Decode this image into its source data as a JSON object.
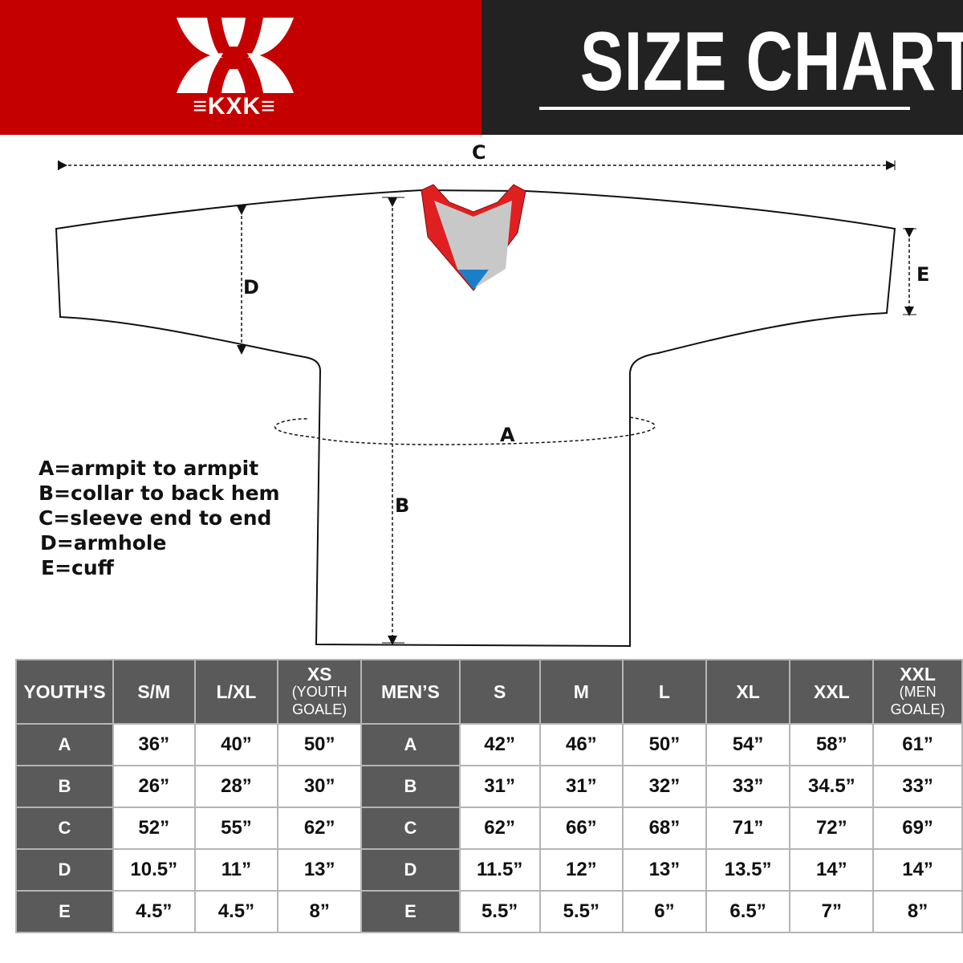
{
  "brand": {
    "logo_text": "KXK",
    "color_primary": "#c40000",
    "color_dark": "#222222"
  },
  "header": {
    "title": "SIZE CHART"
  },
  "diagram": {
    "labels": {
      "A": "A",
      "B": "B",
      "C": "C",
      "D": "D",
      "E": "E"
    },
    "collar_colors": {
      "trim": "#e02020",
      "inner": "#c8c8c8",
      "accent": "#1a7fc8"
    }
  },
  "legend": [
    "A=armpit to armpit",
    "B=collar to back hem",
    "C=sleeve end to end",
    "D=armhole",
    "E=cuff"
  ],
  "table": {
    "youth_header": "YOUTH’S",
    "youth_sizes": [
      {
        "main": "S/M"
      },
      {
        "main": "L/XL"
      },
      {
        "main": "XS",
        "sub1": "(YOUTH",
        "sub2": "GOALE)"
      }
    ],
    "men_header": "MEN’S",
    "men_sizes": [
      {
        "main": "S"
      },
      {
        "main": "M"
      },
      {
        "main": "L"
      },
      {
        "main": "XL"
      },
      {
        "main": "XXL"
      },
      {
        "main": "XXL",
        "sub1": "(MEN",
        "sub2": "GOALE)"
      }
    ],
    "rows": [
      {
        "key": "A",
        "youth": [
          "36”",
          "40”",
          "50”"
        ],
        "men": [
          "42”",
          "46”",
          "50”",
          "54”",
          "58”",
          "61”"
        ]
      },
      {
        "key": "B",
        "youth": [
          "26”",
          "28”",
          "30”"
        ],
        "men": [
          "31”",
          "31”",
          "32”",
          "33”",
          "34.5”",
          "33”"
        ]
      },
      {
        "key": "C",
        "youth": [
          "52”",
          "55”",
          "62”"
        ],
        "men": [
          "62”",
          "66”",
          "68”",
          "71”",
          "72”",
          "69”"
        ]
      },
      {
        "key": "D",
        "youth": [
          "10.5”",
          "11”",
          "13”"
        ],
        "men": [
          "11.5”",
          "12”",
          "13”",
          "13.5”",
          "14”",
          "14”"
        ]
      },
      {
        "key": "E",
        "youth": [
          "4.5”",
          "4.5”",
          "8”"
        ],
        "men": [
          "5.5”",
          "5.5”",
          "6”",
          "6.5”",
          "7”",
          "8”"
        ]
      }
    ]
  }
}
